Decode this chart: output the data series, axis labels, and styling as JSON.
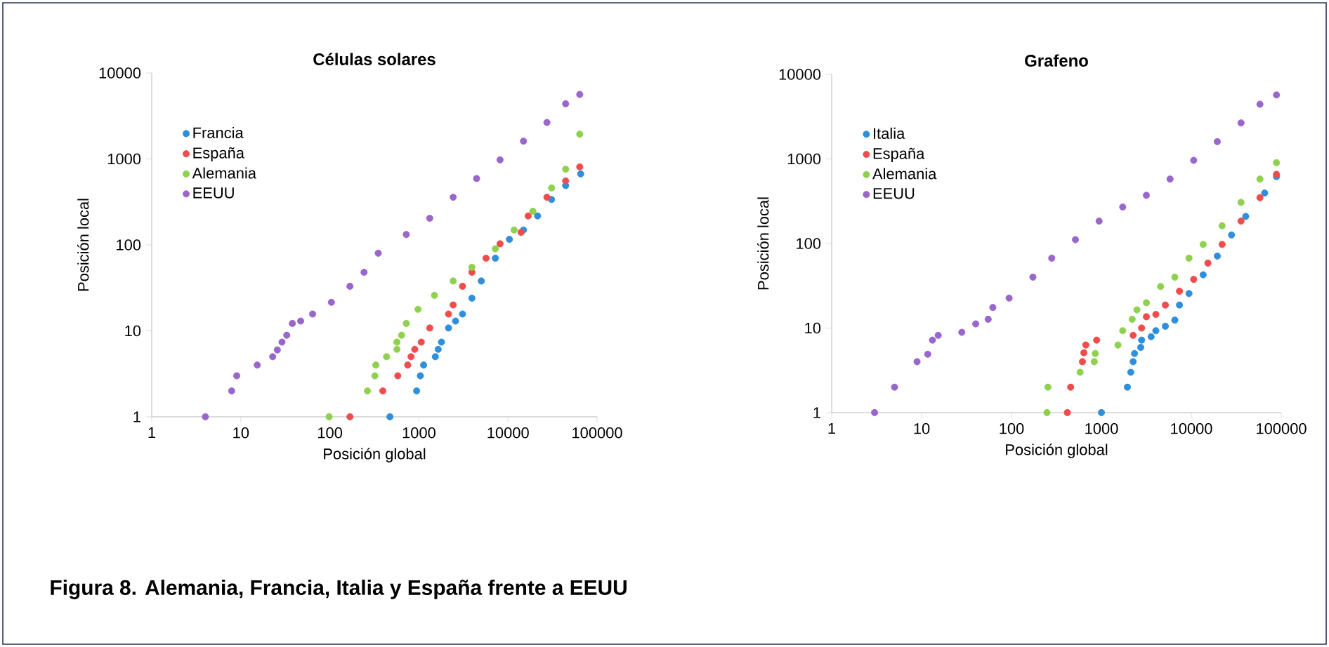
{
  "chart_data": [
    {
      "type": "scatter",
      "title": "Células solares",
      "xlabel": "Posición global",
      "ylabel": "Posición local",
      "log": "xy",
      "grid": false,
      "legend": "top left",
      "marker": "circle",
      "xlim": [
        1,
        100000
      ],
      "ylim": [
        1,
        10000
      ],
      "xticks": [
        1,
        10,
        100,
        1000,
        10000,
        100000
      ],
      "yticks": [
        1,
        10,
        100,
        1000,
        10000
      ],
      "annotations": [
        "Figura 8. Alemania, Francia, Italia y España frente a EEUU"
      ],
      "series": [
        {
          "name": "Francia",
          "color": "#2e8fdc",
          "x": [
            472,
            942,
            1037,
            1129,
            1528,
            1644,
            1790,
            2148,
            2575,
            3085,
            3933,
            5012,
            7213,
            10370,
            14920,
            21470,
            30840,
            44390,
            65430
          ],
          "values": [
            1,
            2,
            3,
            4,
            5,
            6.1,
            7.4,
            10.8,
            13,
            15.7,
            24,
            38,
            70,
            116,
            149,
            217,
            337,
            490,
            670
          ]
        },
        {
          "name": "España",
          "color": "#f04c4c",
          "x": [
            168,
            393,
            579,
            748,
            815,
            897,
            1062,
            1322,
            2148,
            2423,
            3085,
            3933,
            5662,
            8140,
            14000,
            16830,
            27350,
            44390,
            63860
          ],
          "values": [
            1,
            2,
            3,
            4,
            5,
            6.1,
            7.4,
            10.8,
            15.7,
            20,
            33,
            48,
            70,
            103,
            140,
            217,
            358,
            555,
            808
          ]
        },
        {
          "name": "Alemania",
          "color": "#8fd14f",
          "x": [
            98,
            264,
            320,
            328,
            433,
            566,
            566,
            638,
            721,
            976,
            1493,
            2423,
            3933,
            7213,
            11700,
            19010,
            30840,
            44390,
            63860
          ],
          "values": [
            1,
            2,
            3,
            4,
            5,
            6.1,
            7.4,
            8.9,
            12.2,
            17.8,
            25.9,
            38,
            55,
            90,
            149,
            246,
            460,
            759,
            1941
          ]
        },
        {
          "name": "EEUU",
          "color": "#9966cc",
          "x": [
            4,
            7.9,
            9,
            15.3,
            22.8,
            25.7,
            29,
            32.8,
            37.9,
            47,
            64,
            104,
            168,
            242,
            349,
            721,
            1322,
            2423,
            4440,
            8140,
            14920,
            27350,
            44390,
            63860
          ],
          "values": [
            1,
            2,
            3,
            4,
            5,
            6,
            7.4,
            8.9,
            12.2,
            13,
            15.7,
            21.5,
            33,
            48,
            80,
            132,
            204,
            358,
            591,
            975,
            1610,
            2655,
            4375,
            5623
          ]
        }
      ]
    },
    {
      "type": "scatter",
      "title": "Grafeno",
      "xlabel": "Posición global",
      "ylabel": "Posición local",
      "log": "xy",
      "grid": false,
      "legend": "top left",
      "marker": "circle",
      "xlim": [
        1,
        100000
      ],
      "ylim": [
        1,
        10000
      ],
      "xticks": [
        1,
        10,
        100,
        1000,
        10000,
        100000
      ],
      "yticks": [
        1,
        10,
        100,
        1000,
        10000
      ],
      "series": [
        {
          "name": "Italia",
          "color": "#2e8fdc",
          "x": [
            1000,
            1945,
            2120,
            2254,
            2335,
            2735,
            2800,
            3570,
            4030,
            5140,
            6550,
            7380,
            9420,
            13540,
            19450,
            28000,
            40270,
            65430,
            88500
          ],
          "values": [
            1,
            2,
            3,
            4,
            5,
            5.9,
            7.2,
            7.9,
            9.3,
            10.5,
            12.4,
            18.7,
            25.6,
            42.6,
            71,
            126,
            209,
            395,
            617
          ]
        },
        {
          "name": "España",
          "color": "#f04c4c",
          "x": [
            418,
            455,
            615,
            638,
            670,
            885,
            2254,
            2800,
            3162,
            4030,
            5140,
            7380,
            10620,
            15290,
            21980,
            35700,
            57940,
            88500
          ],
          "values": [
            1,
            2,
            4,
            5.1,
            6.3,
            7.2,
            8.2,
            10,
            13.6,
            14.5,
            18.7,
            27.3,
            37.6,
            58.6,
            97.5,
            184,
            348,
            657
          ]
        },
        {
          "name": "Alemania",
          "color": "#8fd14f",
          "x": [
            248,
            254,
            579,
            833,
            855,
            1528,
            1726,
            2198,
            2483,
            3162,
            4550,
            6550,
            9420,
            13540,
            21980,
            35700,
            57940,
            88500
          ],
          "values": [
            1,
            2,
            3,
            4,
            5,
            6.3,
            9.3,
            12.7,
            16.4,
            19.9,
            31,
            40,
            67,
            97.5,
            162,
            306,
            578,
            903
          ]
        },
        {
          "name": "EEUU",
          "color": "#9966cc",
          "x": [
            3,
            5,
            8.9,
            11.7,
            13.2,
            15.3,
            28,
            40,
            55,
            62,
            94,
            173,
            280,
            514,
            942,
            1726,
            3162,
            5800,
            10620,
            19450,
            35700,
            57940,
            88500
          ],
          "values": [
            1,
            2,
            4,
            4.9,
            7.2,
            8.2,
            8.9,
            11.2,
            12.7,
            17.5,
            22.6,
            40,
            67,
            111,
            184,
            270,
            371,
            578,
            962,
            1600,
            2662,
            4430,
            5710
          ]
        }
      ]
    }
  ]
}
